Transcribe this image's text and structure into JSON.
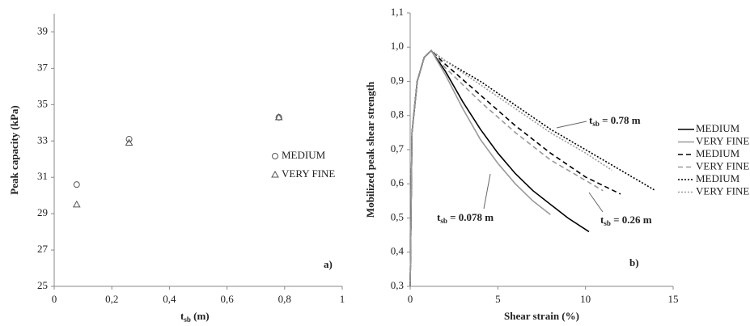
{
  "chart_data": [
    {
      "type": "scatter",
      "y_label": "Peak capacity (kPa)",
      "x_label": {
        "text": "t",
        "sub": "sb",
        "after": " (m)"
      },
      "panel_label": "a)",
      "xlim": [
        0,
        1
      ],
      "xticks": [
        0,
        {
          "value": 0.2,
          "label": "0,2"
        },
        {
          "value": 0.4,
          "label": "0,4"
        },
        {
          "value": 0.6,
          "label": "0,6"
        },
        {
          "value": 0.8,
          "label": "0,8"
        },
        1
      ],
      "ylim": [
        25,
        40
      ],
      "yticks": [
        25,
        27,
        29,
        31,
        33,
        35,
        37,
        39
      ],
      "grid": false,
      "legend": "right",
      "series": [
        {
          "name": "MEDIUM",
          "marker": "circle",
          "color": "#555555",
          "x": [
            0.078,
            0.26,
            0.78
          ],
          "values": [
            30.6,
            33.1,
            34.3
          ]
        },
        {
          "name": "VERY FINE",
          "marker": "triangle",
          "color": "#555555",
          "x": [
            0.078,
            0.26,
            0.78
          ],
          "values": [
            29.5,
            32.9,
            34.3
          ]
        }
      ]
    },
    {
      "type": "line",
      "y_label": "Mobilized peak shear strength",
      "x_label": "Shear strain (%)",
      "panel_label": "b)",
      "xlim": [
        0,
        15
      ],
      "xticks": [
        0,
        5,
        10,
        15
      ],
      "ylim": [
        0.3,
        1.1
      ],
      "yticks": [
        {
          "value": 0.3,
          "label": "0,3"
        },
        {
          "value": 0.4,
          "label": "0,4"
        },
        {
          "value": 0.5,
          "label": "0,5"
        },
        {
          "value": 0.6,
          "label": "0,6"
        },
        {
          "value": 0.7,
          "label": "0,7"
        },
        {
          "value": 0.8,
          "label": "0,8"
        },
        {
          "value": 0.9,
          "label": "0,9"
        },
        {
          "value": 1.0,
          "label": "1,0"
        },
        {
          "value": 1.1,
          "label": "1,1"
        }
      ],
      "grid": false,
      "legend": "right",
      "annotations": [
        {
          "text": "t",
          "sub": "sb",
          "after": " = 0.78 m"
        },
        {
          "text": "t",
          "sub": "sb",
          "after": " = 0.078 m"
        },
        {
          "text": "t",
          "sub": "sb",
          "after": " = 0.26 m"
        }
      ],
      "series": [
        {
          "name": "MEDIUM",
          "color": "#000000",
          "dash": "solid",
          "x": [
            0,
            0.1,
            0.4,
            0.8,
            1.2,
            2,
            3,
            4,
            5,
            6,
            7,
            8,
            9,
            10.2
          ],
          "values": [
            0.3,
            0.75,
            0.9,
            0.97,
            0.99,
            0.93,
            0.84,
            0.76,
            0.69,
            0.63,
            0.58,
            0.54,
            0.5,
            0.46
          ]
        },
        {
          "name": "VERY FINE",
          "color": "#999999",
          "dash": "solid",
          "x": [
            0,
            0.1,
            0.4,
            0.8,
            1.2,
            2,
            3,
            4,
            5,
            6,
            7,
            8
          ],
          "values": [
            0.3,
            0.75,
            0.9,
            0.97,
            0.99,
            0.92,
            0.82,
            0.73,
            0.66,
            0.6,
            0.55,
            0.51
          ]
        },
        {
          "name": "MEDIUM",
          "color": "#000000",
          "dash": "dashed",
          "x": [
            0,
            0.1,
            0.4,
            0.8,
            1.2,
            2,
            4,
            6,
            8,
            10,
            12
          ],
          "values": [
            0.3,
            0.75,
            0.9,
            0.97,
            0.99,
            0.95,
            0.86,
            0.77,
            0.69,
            0.62,
            0.57
          ]
        },
        {
          "name": "VERY FINE",
          "color": "#999999",
          "dash": "dashed",
          "x": [
            0,
            0.1,
            0.4,
            0.8,
            1.2,
            2,
            4,
            6,
            8,
            10,
            11
          ],
          "values": [
            0.3,
            0.75,
            0.9,
            0.97,
            0.99,
            0.94,
            0.84,
            0.75,
            0.67,
            0.61,
            0.58
          ]
        },
        {
          "name": "MEDIUM",
          "color": "#000000",
          "dash": "dotted",
          "x": [
            0,
            0.1,
            0.4,
            0.8,
            1.2,
            2,
            4,
            6,
            8,
            10,
            12,
            14
          ],
          "values": [
            0.3,
            0.75,
            0.9,
            0.97,
            0.99,
            0.96,
            0.9,
            0.83,
            0.76,
            0.7,
            0.64,
            0.58
          ]
        },
        {
          "name": "VERY FINE",
          "color": "#999999",
          "dash": "dotted",
          "x": [
            0,
            0.1,
            0.4,
            0.8,
            1.2,
            2,
            4,
            6,
            8,
            10,
            11.5
          ],
          "values": [
            0.3,
            0.75,
            0.9,
            0.97,
            0.99,
            0.96,
            0.89,
            0.82,
            0.75,
            0.69,
            0.64
          ]
        }
      ]
    }
  ]
}
